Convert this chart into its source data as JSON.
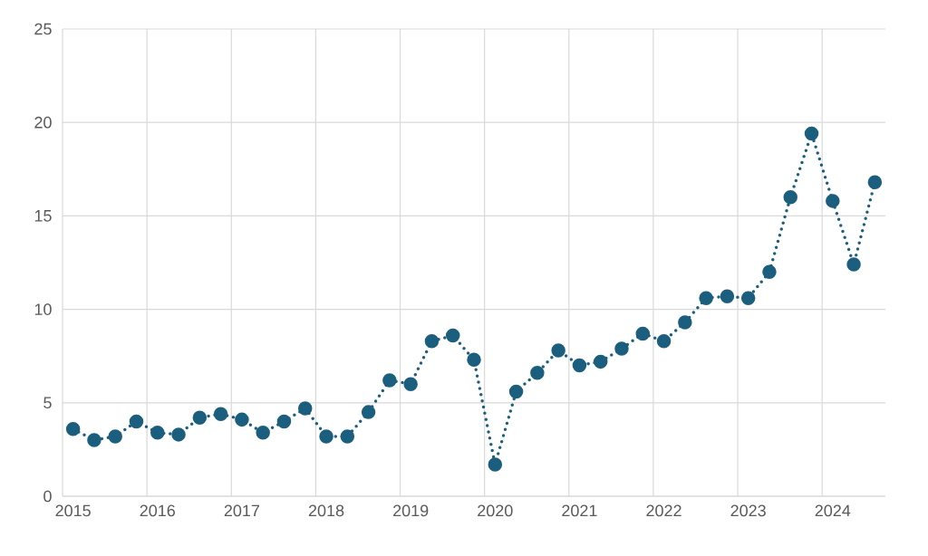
{
  "chart_data": {
    "type": "line",
    "categories": [
      "2015",
      null,
      null,
      null,
      "2016",
      null,
      null,
      null,
      "2017",
      null,
      null,
      null,
      "2018",
      null,
      null,
      null,
      "2019",
      null,
      null,
      null,
      "2020",
      null,
      null,
      null,
      "2021",
      null,
      null,
      null,
      "2022",
      null,
      null,
      null,
      "2023",
      null,
      null,
      null,
      "2024",
      null,
      null
    ],
    "series": [
      {
        "color": "#1b5e7e",
        "values": [
          3.6,
          3.0,
          3.2,
          4.0,
          3.4,
          3.3,
          4.2,
          4.4,
          4.1,
          3.4,
          4.0,
          4.7,
          3.2,
          3.2,
          4.5,
          6.2,
          6.0,
          8.3,
          8.6,
          7.3,
          1.7,
          5.6,
          6.6,
          7.8,
          7.0,
          7.2,
          7.9,
          8.7,
          8.3,
          9.3,
          10.6,
          10.7,
          10.6,
          12.0,
          16.0,
          19.4,
          15.8,
          12.4,
          16.8
        ]
      }
    ],
    "ylim": [
      0,
      25
    ],
    "yticks": [
      0,
      5,
      10,
      15,
      20,
      25
    ],
    "grid": true,
    "marker": "circle",
    "line_style": "dotted"
  }
}
